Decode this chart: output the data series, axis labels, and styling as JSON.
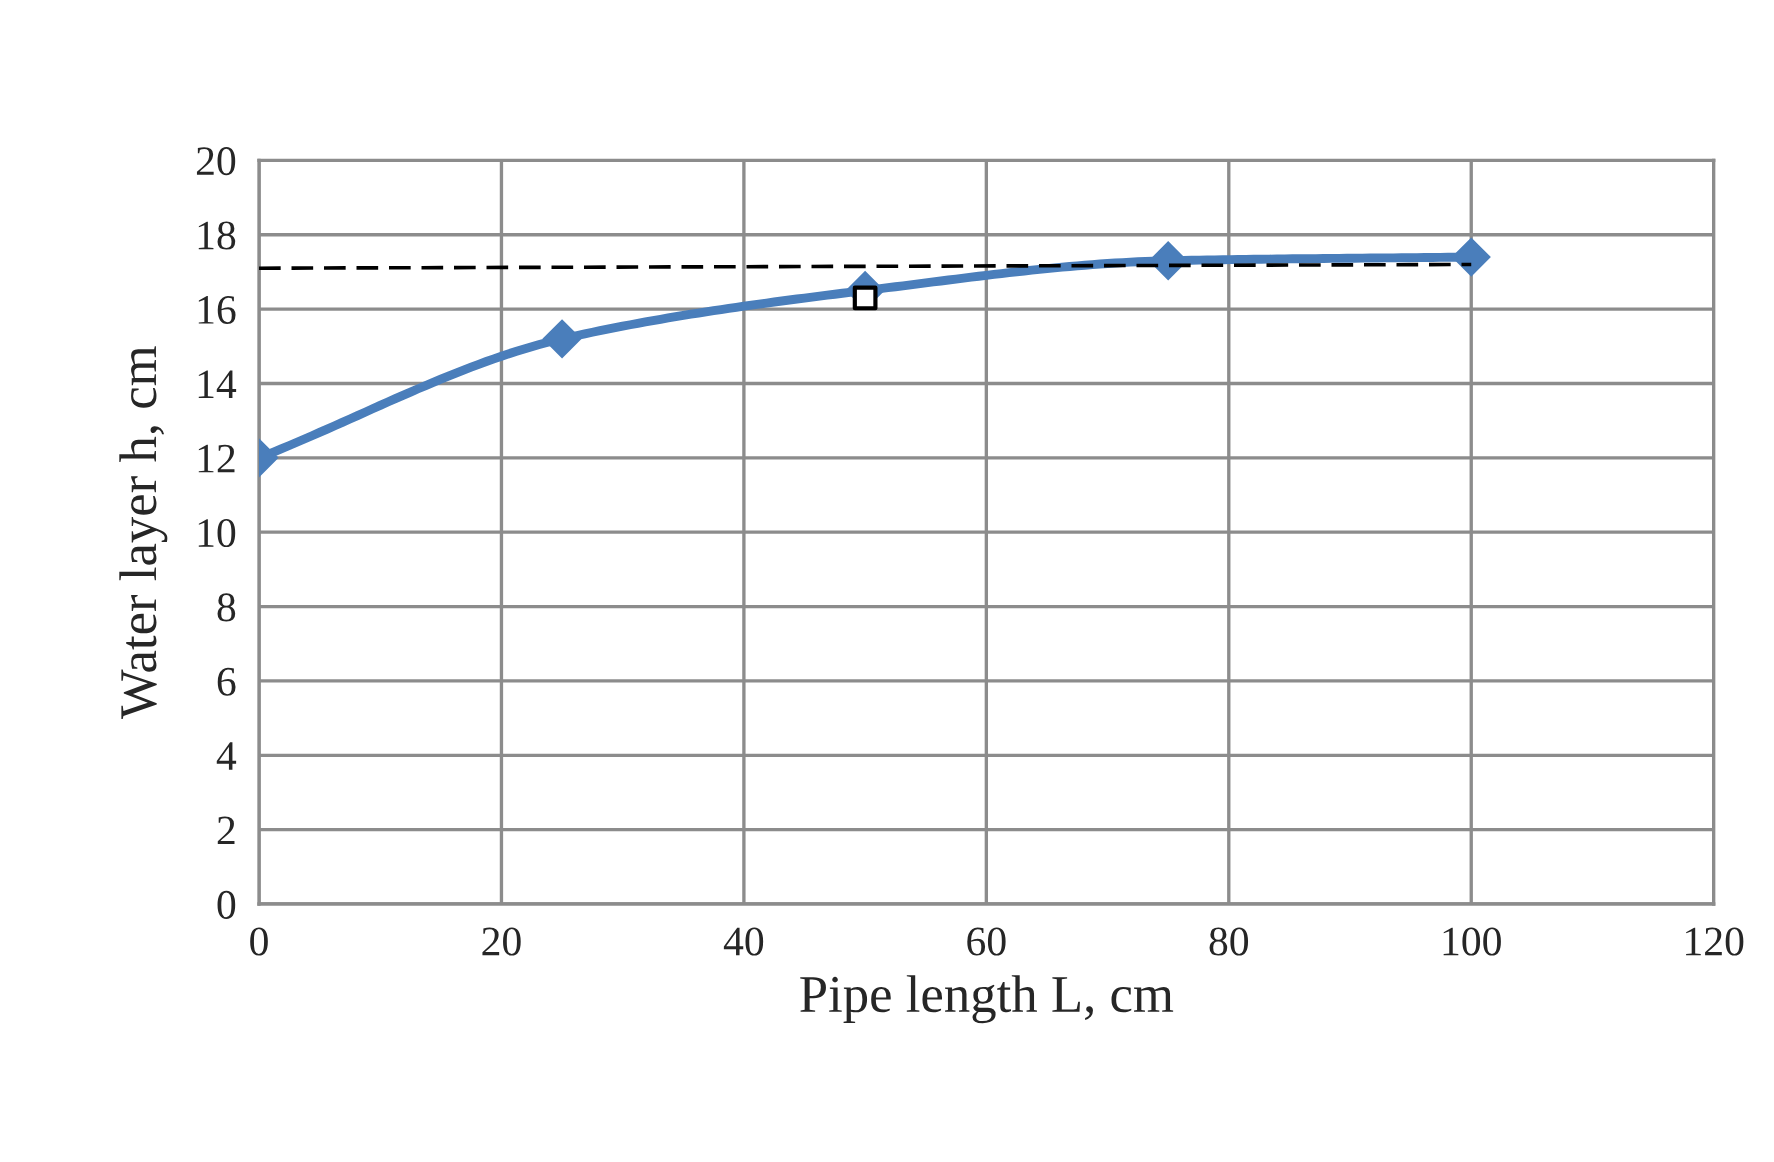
{
  "chart_data": {
    "type": "line",
    "xlabel": "Pipe length L, cm",
    "ylabel": "Water layer h, cm",
    "xlim": [
      0,
      120
    ],
    "xticks": [
      0,
      20,
      40,
      60,
      80,
      100,
      120
    ],
    "ylim": [
      0,
      20
    ],
    "yticks": [
      0,
      2,
      4,
      6,
      8,
      10,
      12,
      14,
      16,
      18,
      20
    ],
    "grid": true,
    "series": [
      {
        "color": "#4a7ebb",
        "marker": "diamond",
        "line_style": "solid",
        "x": [
          0,
          25,
          50,
          75,
          100
        ],
        "values": [
          12,
          15.2,
          16.5,
          17.3,
          17.4
        ]
      },
      {
        "color": "#000000",
        "marker": "none",
        "line_style": "dashed",
        "x": [
          0,
          100
        ],
        "values": [
          17.1,
          17.2
        ]
      },
      {
        "type": "scatter",
        "color": "#000000",
        "marker": "square",
        "x": [
          50
        ],
        "values": [
          16.3
        ]
      }
    ]
  }
}
